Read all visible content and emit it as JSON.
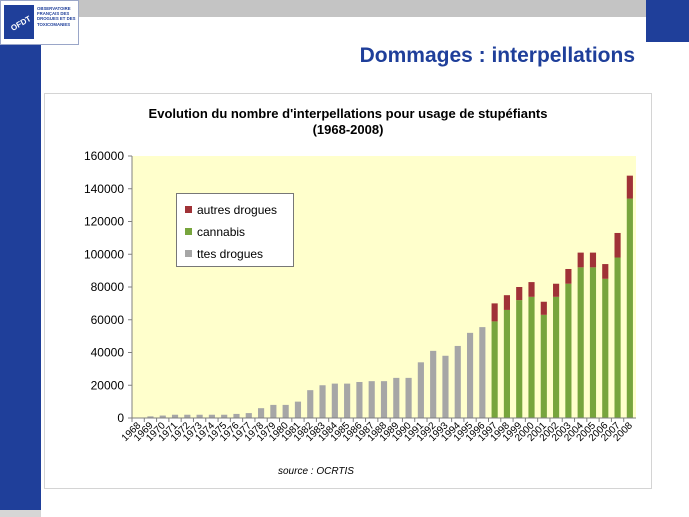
{
  "slide": {
    "title": "Dommages : interpellations",
    "logo": {
      "emblem_text": "OFDT",
      "lines": [
        "OBSERVATOIRE",
        "FRANÇAIS DES",
        "DROGUES ET DES",
        "TOXICOMANIES"
      ]
    },
    "colors": {
      "accent": "#1f3f9a",
      "top_bar": "#c4c4c4"
    }
  },
  "chart_data": {
    "type": "bar",
    "stacked": true,
    "title": "Evolution  du nombre d'interpellations pour usage de stupéfiants",
    "subtitle": "(1968-2008)",
    "xlabel": "",
    "ylabel": "",
    "ylim": [
      0,
      160000
    ],
    "yticks": [
      0,
      20000,
      40000,
      60000,
      80000,
      100000,
      120000,
      140000,
      160000
    ],
    "grid": false,
    "plot_background": "#ffffcc",
    "legend_position": "top-left",
    "source": "source : OCRTIS",
    "categories": [
      "1968",
      "1969",
      "1970",
      "1971",
      "1972",
      "1973",
      "1974",
      "1975",
      "1976",
      "1977",
      "1978",
      "1979",
      "1980",
      "1981",
      "1982",
      "1983",
      "1984",
      "1985",
      "1986",
      "1987",
      "1988",
      "1989",
      "1990",
      "1991",
      "1992",
      "1993",
      "1994",
      "1995",
      "1996",
      "1997",
      "1998",
      "1999",
      "2000",
      "2001",
      "2002",
      "2003",
      "2004",
      "2005",
      "2006",
      "2007",
      "2008"
    ],
    "series": [
      {
        "name": "ttes drogues",
        "color": "#a6a6a6",
        "values": [
          0,
          1000,
          1500,
          2000,
          2000,
          2000,
          2000,
          2000,
          2500,
          3000,
          6000,
          8000,
          8000,
          10000,
          17000,
          20000,
          21000,
          21000,
          22000,
          22500,
          22500,
          24500,
          24500,
          34000,
          41000,
          38000,
          44000,
          52000,
          55500,
          0,
          0,
          0,
          0,
          0,
          0,
          0,
          0,
          0,
          0,
          0,
          0
        ]
      },
      {
        "name": "cannabis",
        "color": "#77a53d",
        "values": [
          0,
          0,
          0,
          0,
          0,
          0,
          0,
          0,
          0,
          0,
          0,
          0,
          0,
          0,
          0,
          0,
          0,
          0,
          0,
          0,
          0,
          0,
          0,
          0,
          0,
          0,
          0,
          0,
          0,
          59000,
          66000,
          72000,
          74000,
          63000,
          74000,
          82000,
          92000,
          92000,
          85000,
          98000,
          134000
        ]
      },
      {
        "name": "autres drogues",
        "color": "#a03237",
        "values": [
          0,
          0,
          0,
          0,
          0,
          0,
          0,
          0,
          0,
          0,
          0,
          0,
          0,
          0,
          0,
          0,
          0,
          0,
          0,
          0,
          0,
          0,
          0,
          0,
          0,
          0,
          0,
          0,
          0,
          11000,
          9000,
          8000,
          9000,
          8000,
          8000,
          9000,
          9000,
          9000,
          9000,
          15000,
          14000
        ]
      }
    ]
  }
}
